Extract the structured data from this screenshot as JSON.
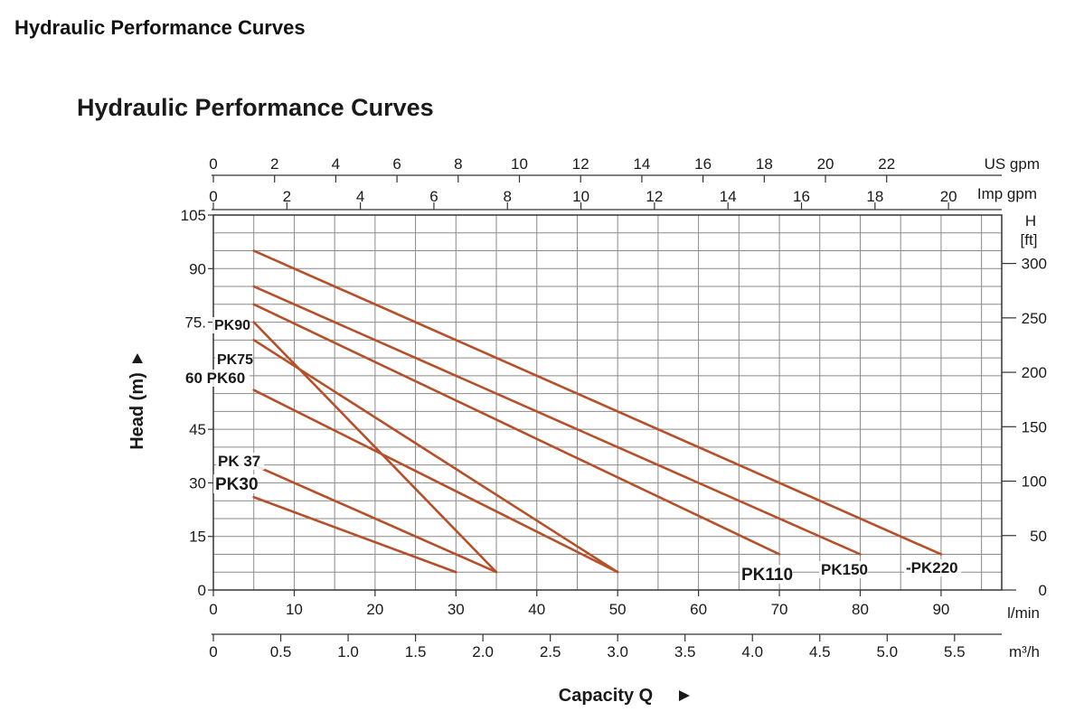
{
  "page": {
    "heading": "Hydraulic Performance Curves"
  },
  "chart_data": {
    "type": "line",
    "title": "Hydraulic Performance Curves",
    "title_color": "#b5502a",
    "curve_color": "#b5502a",
    "xlabel": "Capacity Q",
    "ylabel": "Head (m)",
    "x_unit": "l/min",
    "xlim": [
      0,
      97.5
    ],
    "ylim": [
      0,
      105
    ],
    "grid": true,
    "x_ticks": [
      0,
      10,
      20,
      30,
      40,
      50,
      60,
      70,
      80,
      90
    ],
    "y_ticks": [
      0,
      15,
      30,
      45,
      60,
      75,
      90,
      105
    ],
    "y_tick_labels": [
      "0",
      "15",
      "30",
      "45",
      "60",
      "75.",
      "90",
      "105"
    ],
    "secondary_axes": {
      "us_gpm": {
        "label": "US gpm",
        "factor_lpm": 3.785,
        "ticks": [
          0,
          2,
          4,
          6,
          8,
          10,
          12,
          14,
          16,
          18,
          20,
          22
        ]
      },
      "imp_gpm": {
        "label": "Imp gpm",
        "factor_lpm": 4.546,
        "ticks": [
          0,
          2,
          4,
          6,
          8,
          10,
          12,
          14,
          16,
          18,
          20
        ]
      },
      "m3h": {
        "label": "m³/h",
        "factor_lpm": 16.6667,
        "ticks": [
          0,
          0.5,
          1.0,
          1.5,
          2.0,
          2.5,
          3.0,
          3.5,
          4.0,
          4.5,
          5.0,
          5.5
        ],
        "tick_labels": [
          "0",
          "0.5",
          "1.0",
          "1.5",
          "2.0",
          "2.5",
          "3.0",
          "3.5",
          "4.0",
          "4.5",
          "5.0",
          "5.5"
        ]
      },
      "head_ft": {
        "label": "H",
        "unit": "[ft]",
        "factor_m": 0.3048,
        "ticks": [
          0,
          50,
          100,
          150,
          200,
          250,
          300
        ]
      }
    },
    "series": [
      {
        "name": "PK30",
        "label": "PK30",
        "x": [
          5,
          30
        ],
        "y": [
          26,
          5
        ]
      },
      {
        "name": "PK37",
        "label": "PK 37",
        "x": [
          5,
          35
        ],
        "y": [
          35,
          5
        ]
      },
      {
        "name": "PK60",
        "label": "60 PK60",
        "x": [
          5,
          50
        ],
        "y": [
          56,
          5
        ]
      },
      {
        "name": "PK75",
        "label": "PK75",
        "x": [
          5,
          50
        ],
        "y": [
          70,
          5
        ]
      },
      {
        "name": "PK90",
        "label": "PK90",
        "x": [
          5,
          35
        ],
        "y": [
          75,
          5
        ]
      },
      {
        "name": "PK110",
        "label": "PK110",
        "x": [
          5,
          70
        ],
        "y": [
          80,
          10
        ]
      },
      {
        "name": "PK150",
        "label": "PK150",
        "x": [
          5,
          80
        ],
        "y": [
          85,
          10
        ]
      },
      {
        "name": "PK220",
        "label": "-PK220",
        "x": [
          5,
          90
        ],
        "y": [
          95,
          10
        ]
      }
    ]
  }
}
